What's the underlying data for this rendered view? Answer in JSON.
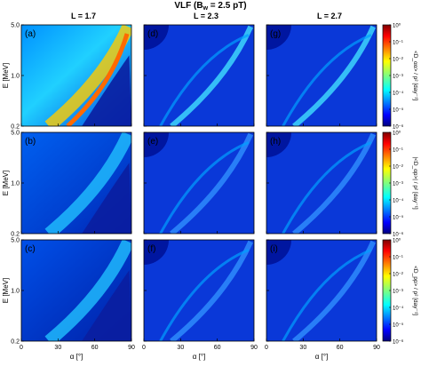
{
  "figure": {
    "title": "VLF (B_w = 2.5 pT)",
    "title_main": "VLF (B",
    "title_sub": "w",
    "title_tail": " = 2.5 pT)",
    "column_titles": [
      "L = 1.7",
      "L = 2.3",
      "L = 2.7"
    ],
    "xlabel": "α [°]",
    "ylabel": "E [MeV]",
    "colorbar_labels": [
      "<D_αα> / p² [day⁻¹]",
      "|<D_αp>| / p² [day⁻¹]",
      "<D_pp> / p² [day⁻¹]"
    ]
  },
  "chart_data": {
    "type": "heatmap",
    "panels": [
      {
        "label": "(a)",
        "row": 0,
        "col": 0,
        "L": 1.7,
        "quantity": "<D_αα>/p²"
      },
      {
        "label": "(d)",
        "row": 0,
        "col": 1,
        "L": 2.3,
        "quantity": "<D_αα>/p²"
      },
      {
        "label": "(g)",
        "row": 0,
        "col": 2,
        "L": 2.7,
        "quantity": "<D_αα>/p²"
      },
      {
        "label": "(b)",
        "row": 1,
        "col": 0,
        "L": 1.7,
        "quantity": "|<D_αp>|/p²"
      },
      {
        "label": "(e)",
        "row": 1,
        "col": 1,
        "L": 2.3,
        "quantity": "|<D_αp>|/p²"
      },
      {
        "label": "(h)",
        "row": 1,
        "col": 2,
        "L": 2.7,
        "quantity": "|<D_αp>|/p²"
      },
      {
        "label": "(c)",
        "row": 2,
        "col": 0,
        "L": 1.7,
        "quantity": "<D_pp>/p²"
      },
      {
        "label": "(f)",
        "row": 2,
        "col": 1,
        "L": 2.3,
        "quantity": "<D_pp>/p²"
      },
      {
        "label": "(i)",
        "row": 2,
        "col": 2,
        "L": 2.7,
        "quantity": "<D_pp>/p²"
      }
    ],
    "xlim": [
      0,
      90
    ],
    "xticks": [
      0,
      30,
      60,
      90
    ],
    "xtick_labels": [
      "0",
      "30",
      "60",
      "90"
    ],
    "ylim": [
      0.2,
      5.0
    ],
    "yscale": "log",
    "yticks": [
      0.2,
      1.0,
      5.0
    ],
    "ytick_labels": [
      "0.2",
      "1.0",
      "5.0"
    ],
    "colorbar": {
      "scale": "log",
      "range": [
        1e-06,
        1
      ],
      "ticks": [
        1,
        0.1,
        0.01,
        0.001,
        0.0001,
        1e-05,
        1e-06
      ],
      "tick_labels": [
        "10⁰",
        "10⁻¹",
        "10⁻²",
        "10⁻³",
        "10⁻⁴",
        "10⁻⁵",
        "10⁻⁶"
      ],
      "colormap": "jet"
    }
  },
  "colors": {
    "jet": [
      "#00007f",
      "#0000ff",
      "#007fff",
      "#00ffff",
      "#7fff7f",
      "#ffff00",
      "#ff7f00",
      "#ff0000",
      "#7f0000"
    ],
    "background_low": "#0a1ea0",
    "resonance_high": "#ff6a00"
  }
}
